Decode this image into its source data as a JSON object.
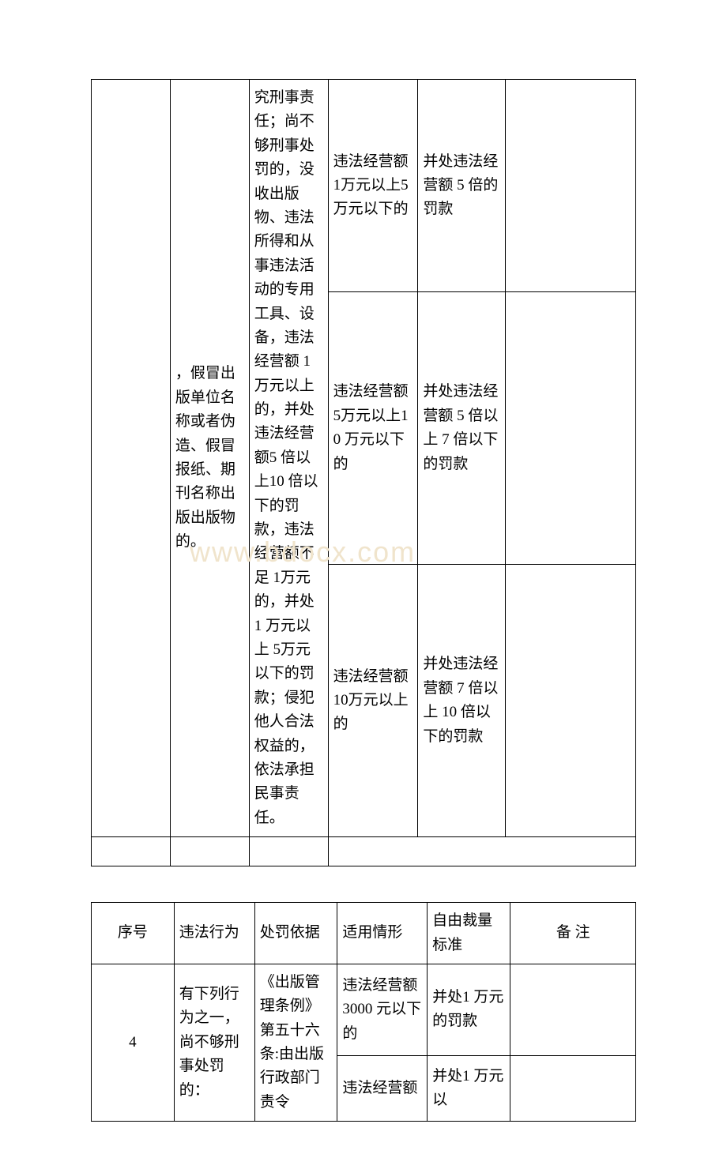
{
  "table1": {
    "r1_c2": "，假冒出版单位名称或者伪造、假冒报纸、期刊名称出版出版物的。",
    "r1_c3": "究刑事责任；尚不够刑事处罚的，没收出版物、违法所得和从事违法活动的专用工具、设备，违法经营额 1 万元以上的，并处违法经营额5 倍以上10 倍以下的罚款，违法经营额不足 1万元的，并处 1 万元以上 5万元以下的罚款；侵犯他人合法权益的，依法承担民事责任。",
    "r1a_c4": "违法经营额 1万元以上5 万元以下的",
    "r1a_c5": "并处违法经营额 5 倍的罚款",
    "r1b_c4": "违法经营额 5万元以上10 万元以下的",
    "r1b_c5": "并处违法经营额 5 倍以上 7 倍以下的罚款",
    "r1c_c4": "违法经营额 10万元以上的",
    "r1c_c5": "并处违法经营额 7 倍以上 10 倍以下的罚款"
  },
  "table2": {
    "header": {
      "c1": "序号",
      "c2": "违法行为",
      "c3": "处罚依据",
      "c4": "适用情形",
      "c5": "自由裁量标准",
      "c6": "备 注"
    },
    "r1_c1": "4",
    "r1_c2": "有下列行为之一，尚不够刑事处罚的：",
    "r1_c3": "《出版管理条例》第五十六条:由出版行政部门责令",
    "r1a_c4": "违法经营额3000 元以下的",
    "r1a_c5": "并处1 万元的罚款",
    "r1b_c4": "违法经营额",
    "r1b_c5": "并处1 万元以"
  },
  "watermark": "www.bdocx.com"
}
